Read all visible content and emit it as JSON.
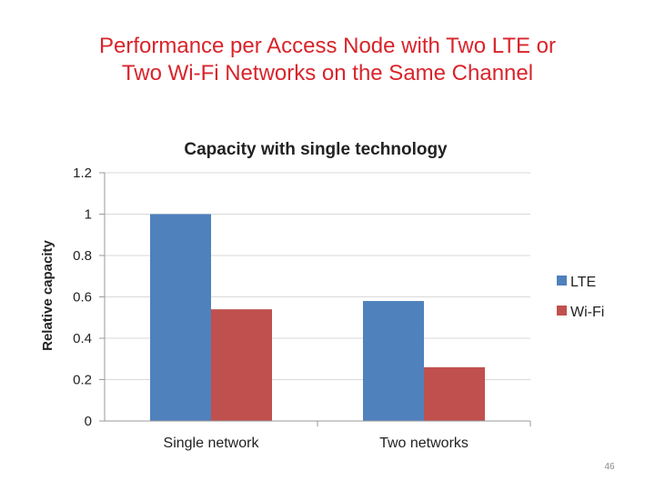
{
  "slide": {
    "title_line1": "Performance per Access Node with Two LTE or",
    "title_line2": "Two Wi-Fi Networks on the Same Channel",
    "page_number": "46"
  },
  "colors": {
    "title": "#d9242b",
    "lte": "#4f81bd",
    "wifi": "#c0504d",
    "grid": "#d9d9d9",
    "axis": "#9a9a9a",
    "text": "#222222"
  },
  "chart_data": {
    "type": "bar",
    "title": "Capacity with single technology",
    "xlabel": "",
    "ylabel": "Relative capacity",
    "categories": [
      "Single network",
      "Two networks"
    ],
    "series": [
      {
        "name": "LTE",
        "values": [
          1.0,
          0.58
        ]
      },
      {
        "name": "Wi-Fi",
        "values": [
          0.54,
          0.26
        ]
      }
    ],
    "ylim": [
      0,
      1.2
    ],
    "yticks": [
      "0",
      "0.2",
      "0.4",
      "0.6",
      "0.8",
      "1",
      "1.2"
    ],
    "grid": true,
    "legend": "right"
  }
}
